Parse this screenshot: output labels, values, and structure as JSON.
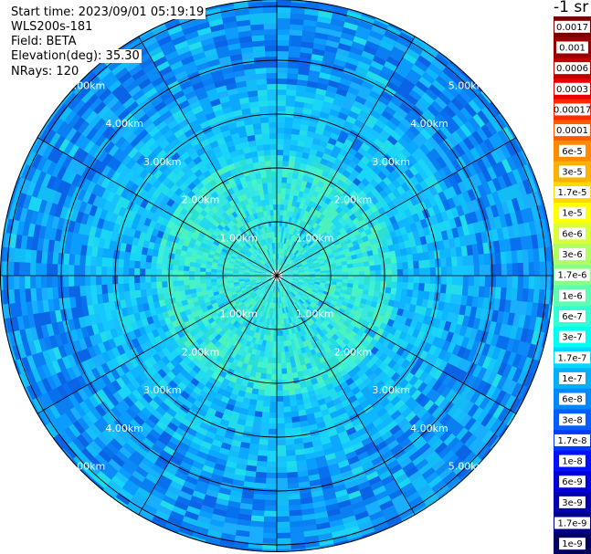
{
  "info": {
    "start_time": "Start time: 2023/09/01 05:19:19",
    "device": "WLS200s-181",
    "field": "Field: BETA",
    "elevation": "Elevation(deg): 35.30",
    "nrays": "NRays: 120"
  },
  "colorbar": {
    "unit": "-1 sr",
    "labels": [
      "0.0017",
      "0.001",
      "0.0006",
      "0.0003",
      "0.00017",
      "0.0001",
      "6e-5",
      "3e-5",
      "1.7e-5",
      "1e-5",
      "6e-6",
      "3e-6",
      "1.7e-6",
      "1e-6",
      "6e-7",
      "3e-7",
      "1.7e-7",
      "1e-7",
      "6e-8",
      "3e-8",
      "1.7e-8",
      "1e-8",
      "6e-9",
      "3e-9",
      "1.7e-9",
      "1e-9"
    ],
    "colors": [
      "#7a0000",
      "#990000",
      "#c00000",
      "#e80000",
      "#ff2a00",
      "#ff5a00",
      "#ff8a00",
      "#ffb000",
      "#ffd800",
      "#ffff00",
      "#d8ff3a",
      "#b0ff60",
      "#88ff88",
      "#5cffb0",
      "#33ffd6",
      "#00fff0",
      "#00d8ff",
      "#00b0ff",
      "#0088ff",
      "#0060ff",
      "#0038ff",
      "#0010ff",
      "#0000d8",
      "#0000b0",
      "#000088",
      "#000060"
    ]
  },
  "range_labels": [
    "1.00km",
    "2.00km",
    "3.00km",
    "4.00km",
    "5.00km"
  ],
  "palette": {
    "near": [
      "#3ef0d8",
      "#46f5c4",
      "#30e4e8",
      "#2ddfd0",
      "#50f0b8",
      "#22d8f0",
      "#36e8e0"
    ],
    "mid": [
      "#14c8ff",
      "#1ad6f6",
      "#0eb6ff",
      "#22dcea",
      "#0aa8ff",
      "#18c0ff"
    ],
    "far": [
      "#0a9cff",
      "#0b8af8",
      "#1aaeff",
      "#0670ee",
      "#12bdf6",
      "#0a7ff2",
      "#0b64e6"
    ],
    "grid": "#000000",
    "label": "#ffffff"
  }
}
